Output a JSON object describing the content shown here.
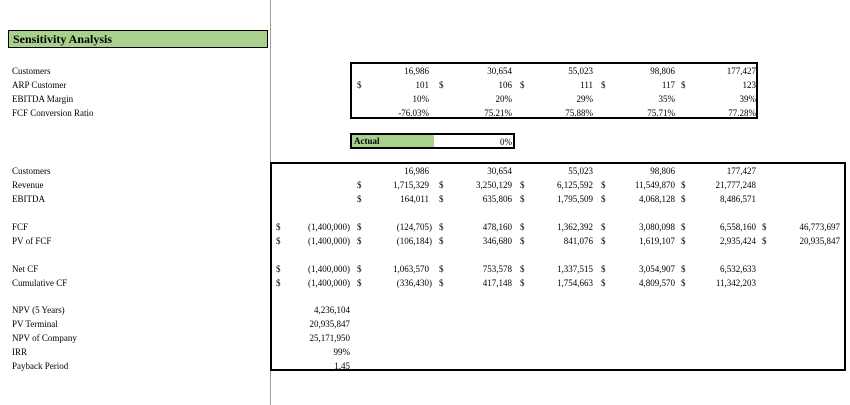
{
  "title": "Sensitivity Analysis",
  "scenario_labels": [
    "Customers",
    "ARP Customer",
    "EBITDA Margin",
    "FCF Conversion Ratio"
  ],
  "scenario": {
    "customers": [
      "16,986",
      "30,654",
      "55,023",
      "98,806",
      "177,427"
    ],
    "arp": [
      "101",
      "106",
      "111",
      "117",
      "123"
    ],
    "ebitda_margin": [
      "10%",
      "20%",
      "29%",
      "35%",
      "39%"
    ],
    "fcf_conversion": [
      "-76.03%",
      "75.21%",
      "75.88%",
      "75.71%",
      "77.28%"
    ]
  },
  "actual": {
    "label": "Actual",
    "value": "0%"
  },
  "currency": "$",
  "model_labels": {
    "customers": "Customers",
    "revenue": "Revenue",
    "ebitda": "EBITDA",
    "fcf": "FCF",
    "pv_fcf": "PV of FCF",
    "net_cf": "Net CF",
    "cumulative_cf": "Cumulative CF"
  },
  "model": {
    "customers": [
      "16,986",
      "30,654",
      "55,023",
      "98,806",
      "177,427"
    ],
    "revenue": [
      "1,715,329",
      "3,250,129",
      "6,125,592",
      "11,549,870",
      "21,777,248"
    ],
    "ebitda": [
      "164,011",
      "635,806",
      "1,795,509",
      "4,068,128",
      "8,486,571"
    ],
    "fcf": [
      "(1,400,000)",
      "(124,705)",
      "478,160",
      "1,362,392",
      "3,080,098",
      "6,558,160",
      "46,773,697"
    ],
    "pv_fcf": [
      "(1,400,000)",
      "(106,184)",
      "346,680",
      "841,076",
      "1,619,107",
      "2,935,424",
      "20,935,847"
    ],
    "net_cf": [
      "(1,400,000)",
      "1,063,570",
      "753,578",
      "1,337,515",
      "3,054,907",
      "6,532,633"
    ],
    "cumulative_cf": [
      "(1,400,000)",
      "(336,430)",
      "417,148",
      "1,754,663",
      "4,809,570",
      "11,342,203"
    ]
  },
  "summary": {
    "labels": [
      "NPV (5 Years)",
      "PV Terminal",
      "NPV of Company",
      "IRR",
      "Payback Period"
    ],
    "values": [
      "4,236,104",
      "20,935,847",
      "25,171,950",
      "99%",
      "1.45"
    ]
  }
}
